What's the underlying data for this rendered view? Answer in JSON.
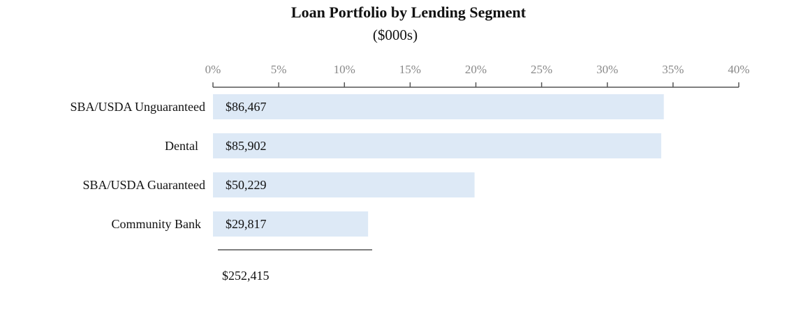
{
  "chart_data": {
    "type": "bar",
    "orientation": "horizontal",
    "title": "Loan Portfolio by Lending Segment",
    "subtitle": "($000s)",
    "x_axis": {
      "min": 0,
      "max": 40,
      "ticks": [
        0,
        5,
        10,
        15,
        20,
        25,
        30,
        35,
        40
      ],
      "tick_labels": [
        "0%",
        "5%",
        "10%",
        "15%",
        "20%",
        "25%",
        "30%",
        "35%",
        "40%"
      ],
      "position": "top"
    },
    "categories": [
      "SBA/USDA Unguaranteed",
      "Dental",
      "SBA/USDA Guaranteed",
      "Community Bank"
    ],
    "values": [
      34.3,
      34.1,
      19.9,
      11.8
    ],
    "value_labels": [
      "$86,467",
      "$85,902",
      "$50,229",
      "$29,817"
    ],
    "total_label": "$252,415",
    "colors": {
      "bar": "#dde9f6",
      "axis": "#555555",
      "tick_text": "#888888",
      "text": "#111111"
    }
  }
}
